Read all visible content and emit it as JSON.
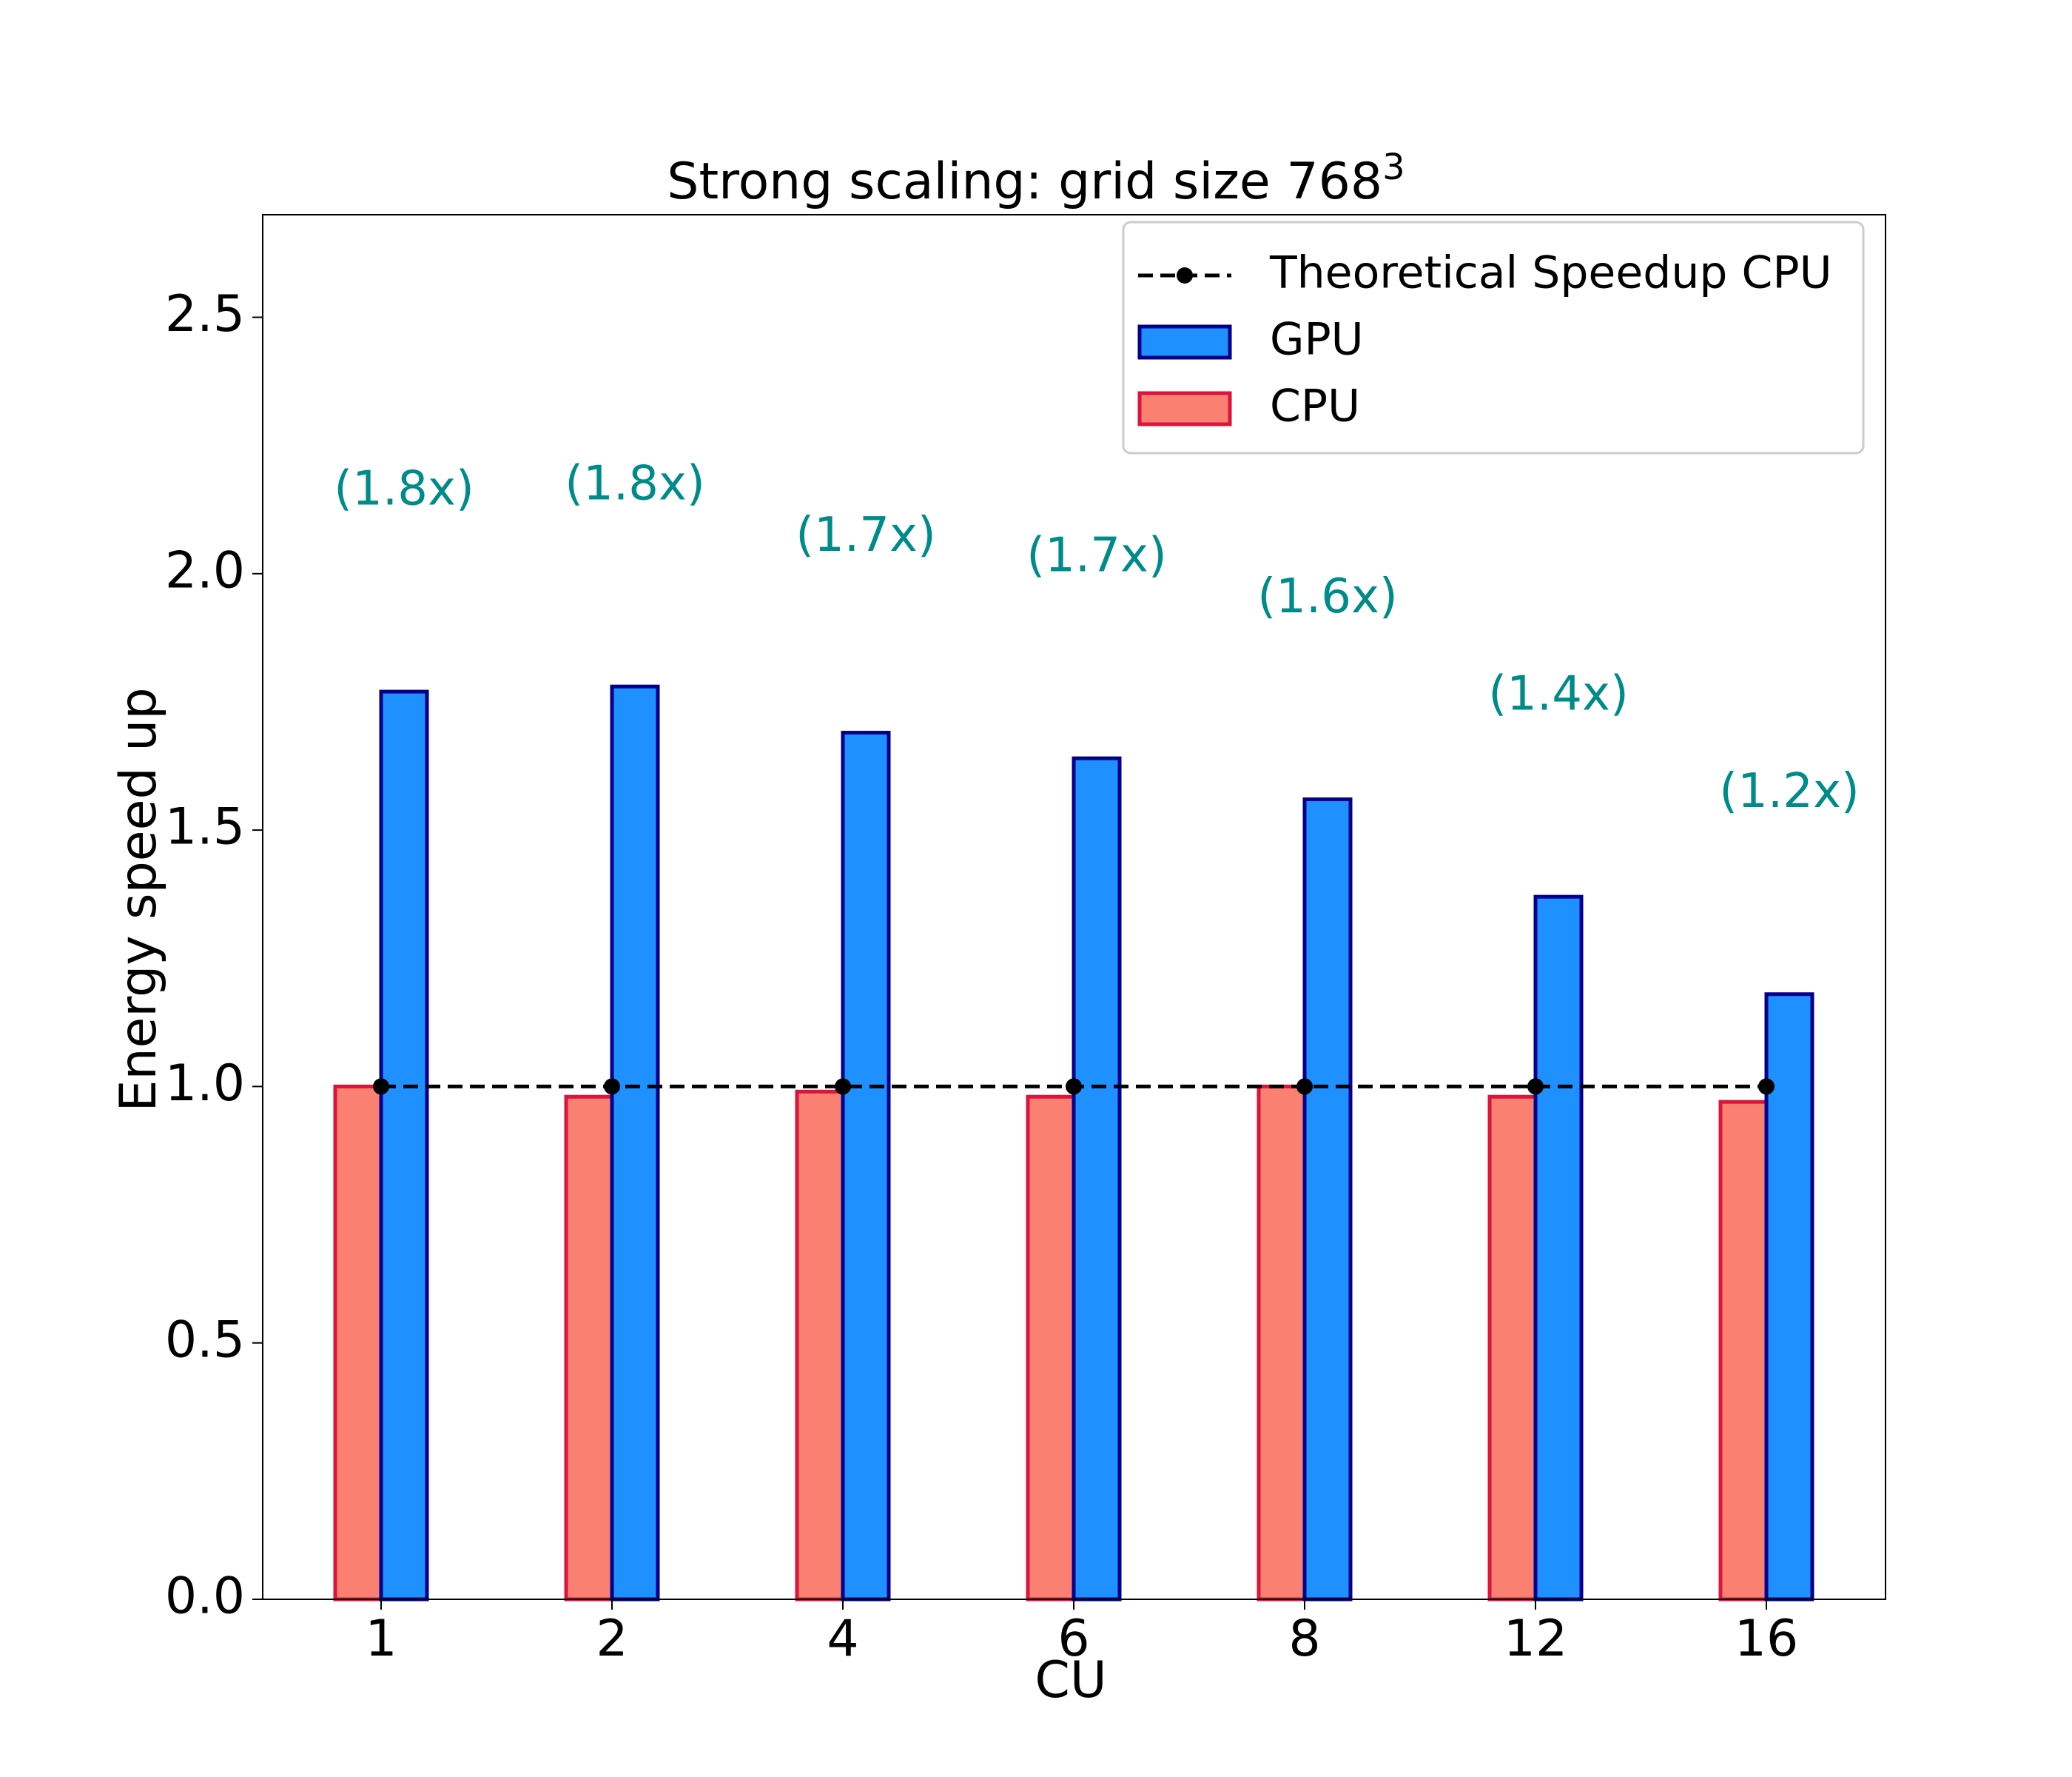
{
  "chart_data": {
    "type": "bar",
    "title": "Strong scaling: grid size 768",
    "title_superscript": "3",
    "xlabel": "CU",
    "ylabel": "Energy speed up",
    "categories": [
      "1",
      "2",
      "4",
      "6",
      "8",
      "12",
      "16"
    ],
    "ylim": [
      0,
      2.7
    ],
    "yticks": [
      0.0,
      0.5,
      1.0,
      1.5,
      2.0,
      2.5
    ],
    "ytick_labels": [
      "0.0",
      "0.5",
      "1.0",
      "1.5",
      "2.0",
      "2.5"
    ],
    "grid": false,
    "legend_position": "top-right",
    "series": [
      {
        "name": "CPU",
        "kind": "bar",
        "values": [
          1.0,
          0.98,
          0.99,
          0.98,
          1.0,
          0.98,
          0.97
        ],
        "fill": "#fa8072",
        "edge": "#dc143c"
      },
      {
        "name": "GPU",
        "kind": "bar",
        "values": [
          1.77,
          1.78,
          1.69,
          1.64,
          1.56,
          1.37,
          1.18
        ],
        "fill": "#1e90ff",
        "edge": "#00008b"
      },
      {
        "name": "Theoretical Speedup CPU",
        "kind": "line",
        "style": "dashed",
        "marker": "circle",
        "values": [
          1.0,
          1.0,
          1.0,
          1.0,
          1.0,
          1.0,
          1.0
        ],
        "color": "#000000"
      }
    ],
    "annotations": {
      "labels": [
        "(1.8x)",
        "(1.8x)",
        "(1.7x)",
        "(1.7x)",
        "(1.6x)",
        "(1.4x)",
        "(1.2x)"
      ],
      "y": [
        2.16,
        2.17,
        2.07,
        2.03,
        1.95,
        1.76,
        1.57
      ],
      "color": "#008b8b"
    }
  }
}
